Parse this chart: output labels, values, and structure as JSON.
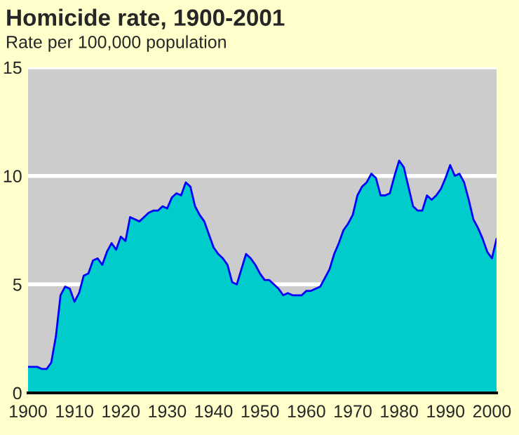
{
  "chart_data": {
    "type": "area",
    "title": "Homicide rate, 1900-2001",
    "subtitle": "Rate per 100,000 population",
    "x": [
      1900,
      1901,
      1902,
      1903,
      1904,
      1905,
      1906,
      1907,
      1908,
      1909,
      1910,
      1911,
      1912,
      1913,
      1914,
      1915,
      1916,
      1917,
      1918,
      1919,
      1920,
      1921,
      1922,
      1923,
      1924,
      1925,
      1926,
      1927,
      1928,
      1929,
      1930,
      1931,
      1932,
      1933,
      1934,
      1935,
      1936,
      1937,
      1938,
      1939,
      1940,
      1941,
      1942,
      1943,
      1944,
      1945,
      1946,
      1947,
      1948,
      1949,
      1950,
      1951,
      1952,
      1953,
      1954,
      1955,
      1956,
      1957,
      1958,
      1959,
      1960,
      1961,
      1962,
      1963,
      1964,
      1965,
      1966,
      1967,
      1968,
      1969,
      1970,
      1971,
      1972,
      1973,
      1974,
      1975,
      1976,
      1977,
      1978,
      1979,
      1980,
      1981,
      1982,
      1983,
      1984,
      1985,
      1986,
      1987,
      1988,
      1989,
      1990,
      1991,
      1992,
      1993,
      1994,
      1995,
      1996,
      1997,
      1998,
      1999,
      2000,
      2001
    ],
    "series": [
      {
        "color": "#00cccc",
        "values": [
          1.2,
          1.2,
          1.2,
          1.1,
          1.1,
          1.4,
          2.6,
          4.5,
          4.9,
          4.8,
          4.2,
          4.6,
          5.4,
          5.5,
          6.1,
          6.2,
          5.9,
          6.5,
          6.9,
          6.6,
          7.2,
          7.0,
          8.1,
          8.0,
          7.9,
          8.1,
          8.3,
          8.4,
          8.4,
          8.6,
          8.5,
          9.0,
          9.2,
          9.1,
          9.7,
          9.5,
          8.6,
          8.2,
          7.9,
          7.3,
          6.7,
          6.4,
          6.2,
          5.9,
          5.1,
          5.0,
          5.7,
          6.4,
          6.2,
          5.9,
          5.5,
          5.2,
          5.2,
          5.0,
          4.8,
          4.5,
          4.6,
          4.5,
          4.5,
          4.5,
          4.7,
          4.7,
          4.8,
          4.9,
          5.3,
          5.7,
          6.4,
          6.9,
          7.5,
          7.8,
          8.2,
          9.1,
          9.5,
          9.7,
          10.1,
          9.9,
          9.1,
          9.1,
          9.2,
          10.0,
          10.7,
          10.4,
          9.5,
          8.6,
          8.4,
          8.4,
          9.1,
          8.9,
          9.1,
          9.4,
          9.9,
          10.5,
          10.0,
          10.1,
          9.7,
          8.9,
          8.0,
          7.6,
          7.1,
          6.5,
          6.2,
          7.1
        ]
      }
    ],
    "xlim": [
      1900,
      2001
    ],
    "xticks": [
      1900,
      1910,
      1920,
      1930,
      1940,
      1950,
      1960,
      1970,
      1980,
      1990,
      2000
    ],
    "ylim": [
      0,
      15
    ],
    "yticks": [
      0,
      5,
      10,
      15
    ],
    "grid": "y",
    "legend": false
  }
}
